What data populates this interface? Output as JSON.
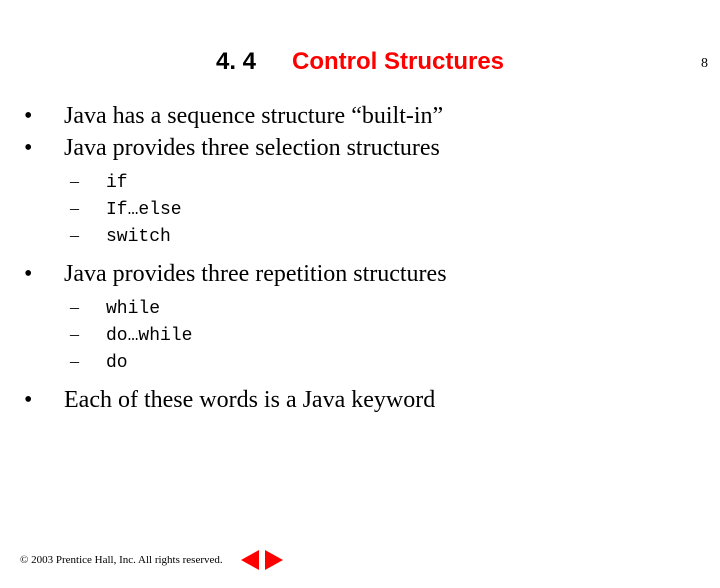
{
  "page_number": "8",
  "heading": {
    "number": "4. 4",
    "title": "Control Structures",
    "number_color": "#000000",
    "title_color": "#ff0000",
    "font_family": "Arial",
    "font_size_pt": 18,
    "font_weight": "bold"
  },
  "bullets": {
    "level1_font_size_pt": 18,
    "level1_font_family": "Times New Roman",
    "level2_font_size_pt": 14,
    "level2_code_font_family": "Courier New",
    "items": [
      {
        "text": "Java has a sequence structure “built-in”",
        "sub": []
      },
      {
        "text": "Java provides three selection structures",
        "sub": [
          {
            "code": "if"
          },
          {
            "code": "If…else"
          },
          {
            "code": "switch"
          }
        ]
      },
      {
        "text": "Java provides three repetition structures",
        "sub": [
          {
            "code": "while"
          },
          {
            "code": "do…while"
          },
          {
            "code": "do"
          }
        ]
      },
      {
        "text": "Each of these words is a Java keyword",
        "sub": []
      }
    ]
  },
  "footer": {
    "copyright": "© 2003 Prentice Hall, Inc. All rights reserved.",
    "nav_prev_color": "#ff0000",
    "nav_next_color": "#ff0000"
  },
  "background_color": "#ffffff"
}
